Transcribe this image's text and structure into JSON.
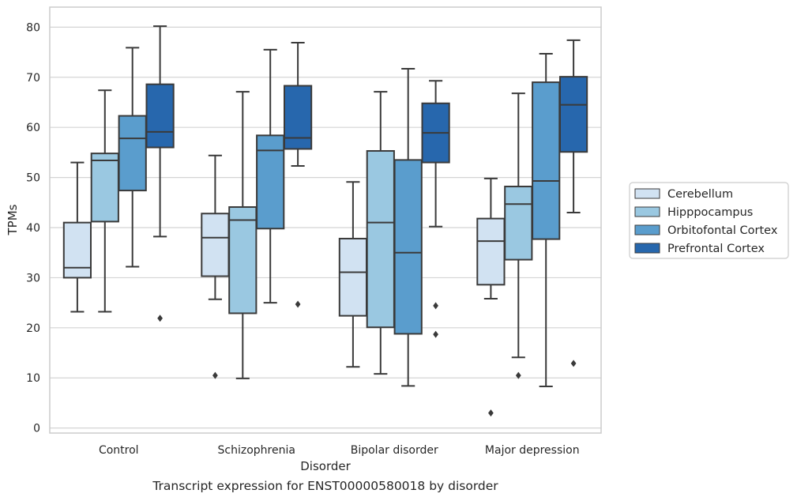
{
  "caption": "Transcript expression for ENST00000580018 by disorder",
  "chart_data": {
    "type": "box",
    "xlabel": "Disorder",
    "ylabel": "TPMs",
    "ylim": [
      -1,
      84
    ],
    "yticks": [
      0,
      10,
      20,
      30,
      40,
      50,
      60,
      70,
      80
    ],
    "grid": true,
    "legend_position": "right",
    "categories": [
      "Control",
      "Schizophrenia",
      "Bipolar disorder",
      "Major depression"
    ],
    "series": [
      {
        "name": "Cerebellum",
        "color": "#d1e2f2",
        "boxes": [
          {
            "whislo": 23.2,
            "q1": 30.0,
            "med": 32.0,
            "q3": 41.0,
            "whishi": 53.0,
            "fliers": []
          },
          {
            "whislo": 25.7,
            "q1": 30.3,
            "med": 38.0,
            "q3": 42.8,
            "whishi": 54.4,
            "fliers": [
              10.5
            ]
          },
          {
            "whislo": 12.2,
            "q1": 22.4,
            "med": 31.1,
            "q3": 37.8,
            "whishi": 49.1,
            "fliers": []
          },
          {
            "whislo": 25.8,
            "q1": 28.6,
            "med": 37.3,
            "q3": 41.8,
            "whishi": 49.8,
            "fliers": [
              3.0
            ]
          }
        ]
      },
      {
        "name": "Hipppocampus",
        "color": "#9ac8e1",
        "boxes": [
          {
            "whislo": 23.2,
            "q1": 41.2,
            "med": 53.4,
            "q3": 54.8,
            "whishi": 67.4,
            "fliers": []
          },
          {
            "whislo": 9.9,
            "q1": 22.9,
            "med": 41.5,
            "q3": 44.1,
            "whishi": 67.1,
            "fliers": []
          },
          {
            "whislo": 10.8,
            "q1": 20.1,
            "med": 41.0,
            "q3": 55.3,
            "whishi": 67.1,
            "fliers": []
          },
          {
            "whislo": 14.1,
            "q1": 33.6,
            "med": 44.7,
            "q3": 48.2,
            "whishi": 66.8,
            "fliers": [
              10.5
            ]
          }
        ]
      },
      {
        "name": "Orbitofontal Cortex",
        "color": "#5a9dcd",
        "boxes": [
          {
            "whislo": 32.2,
            "q1": 47.4,
            "med": 57.8,
            "q3": 62.3,
            "whishi": 75.9,
            "fliers": []
          },
          {
            "whislo": 25.0,
            "q1": 39.8,
            "med": 55.4,
            "q3": 58.4,
            "whishi": 75.5,
            "fliers": []
          },
          {
            "whislo": 8.4,
            "q1": 18.8,
            "med": 35.0,
            "q3": 53.5,
            "whishi": 71.7,
            "fliers": []
          },
          {
            "whislo": 8.3,
            "q1": 37.7,
            "med": 49.3,
            "q3": 69.0,
            "whishi": 74.7,
            "fliers": []
          }
        ]
      },
      {
        "name": "Prefrontal Cortex",
        "color": "#2767ad",
        "boxes": [
          {
            "whislo": 38.2,
            "q1": 56.0,
            "med": 59.1,
            "q3": 68.6,
            "whishi": 80.2,
            "fliers": [
              21.9
            ]
          },
          {
            "whislo": 52.3,
            "q1": 55.7,
            "med": 57.9,
            "q3": 68.3,
            "whishi": 76.9,
            "fliers": [
              24.7
            ]
          },
          {
            "whislo": 40.2,
            "q1": 53.0,
            "med": 58.9,
            "q3": 64.8,
            "whishi": 69.3,
            "fliers": [
              24.4,
              18.7
            ]
          },
          {
            "whislo": 43.0,
            "q1": 55.1,
            "med": 64.5,
            "q3": 70.1,
            "whishi": 77.4,
            "fliers": [
              12.9
            ]
          }
        ]
      }
    ]
  }
}
